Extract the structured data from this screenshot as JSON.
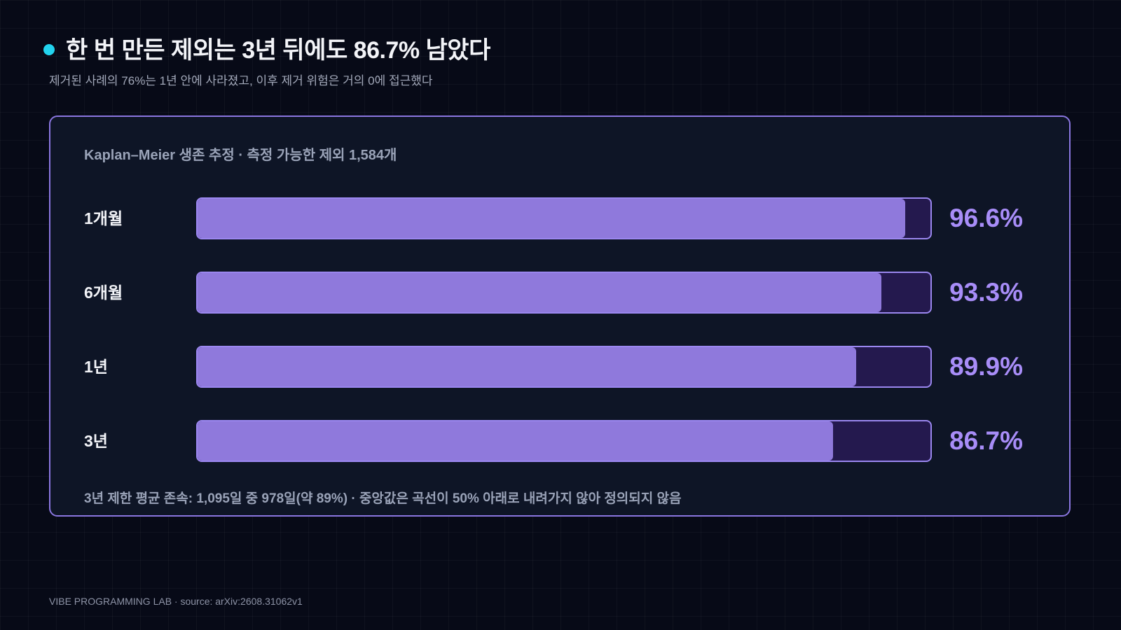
{
  "header": {
    "title": "한 번 만든 제외는 3년 뒤에도 86.7% 남았다",
    "subtitle": "제거된 사례의 76%는 1년 안에 사라졌고, 이후 제거 위험은 거의 0에 접근했다"
  },
  "card": {
    "title": "Kaplan–Meier 생존 추정 · 측정 가능한 제외 1,584개",
    "note": "3년 제한 평균 존속: 1,095일 중 978일(약 89%) · 중앙값은 곡선이 50% 아래로 내려가지 않아 정의되지 않음"
  },
  "chart_data": {
    "type": "bar",
    "orientation": "horizontal",
    "title": "Kaplan–Meier 생존 추정 · 측정 가능한 제외 1,584개",
    "categories": [
      "1개월",
      "6개월",
      "1년",
      "3년"
    ],
    "values": [
      96.6,
      93.3,
      89.9,
      86.7
    ],
    "value_labels": [
      "96.6%",
      "93.3%",
      "89.9%",
      "86.7%"
    ],
    "unit": "%",
    "xlim": [
      0,
      100
    ],
    "grid": false
  },
  "colors": {
    "accent_dot": "#22d3ee",
    "bar_fill": "#8f79dc",
    "bar_track": "#24194e",
    "bar_border": "#9b87f0",
    "value_text": "#a88df8"
  },
  "footer": {
    "text": "VIBE PROGRAMMING LAB · source: arXiv:2608.31062v1"
  }
}
